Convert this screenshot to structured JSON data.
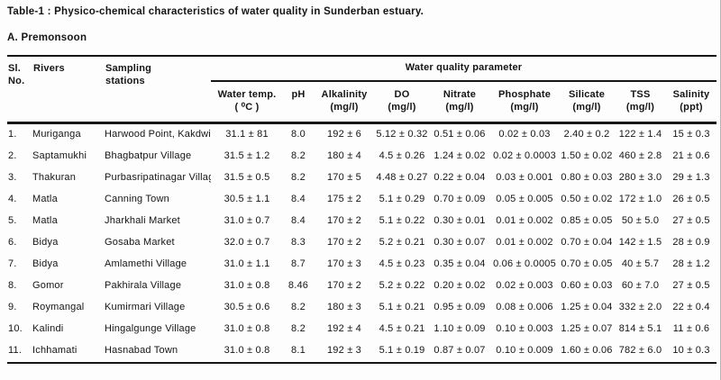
{
  "page": {
    "title": "Table-1 : Physico-chemical characteristics of water quality in Sunderban estuary.",
    "section_label": "A. Premonsoon"
  },
  "colors": {
    "background": "#fdfdfd",
    "text": "#151515",
    "rule": "#161616"
  },
  "table": {
    "group_header": "Water quality parameter",
    "row_headers": {
      "sl_no": "Sl.\nNo.",
      "rivers": "Rivers",
      "stations": "Sampling\nstations"
    },
    "columns": [
      {
        "name": "Water temp.",
        "unit": "( ⁰C )"
      },
      {
        "name": "pH",
        "unit": ""
      },
      {
        "name": "Alkalinity",
        "unit": "(mg/l)"
      },
      {
        "name": "DO",
        "unit": "(mg/l)"
      },
      {
        "name": "Nitrate",
        "unit": "(mg/l)"
      },
      {
        "name": "Phosphate",
        "unit": "(mg/l)"
      },
      {
        "name": "Silicate",
        "unit": "(mg/l)"
      },
      {
        "name": "TSS",
        "unit": "(mg/l)"
      },
      {
        "name": "Salinity",
        "unit": "(ppt)"
      }
    ],
    "rows": [
      [
        "1.",
        "Muriganga",
        "Harwood Point, Kakdwip",
        "31.1 ± 81",
        "8.0",
        "192 ± 6",
        "5.12 ± 0.32",
        "0.51 ± 0.06",
        "0.02 ± 0.03",
        "2.40 ± 0.2",
        "122 ± 1.4",
        "15 ± 0.3"
      ],
      [
        "2.",
        "Saptamukhi",
        "Bhagbatpur Village",
        "31.5 ± 1.2",
        "8.2",
        "180 ± 4",
        "4.5 ± 0.26",
        "1.24 ± 0.02",
        "0.02 ± 0.0003",
        "1.50 ± 0.02",
        "460 ± 2.8",
        "21 ± 0.6"
      ],
      [
        "3.",
        "Thakuran",
        "Purbasripatinagar Village",
        "31.5 ± 0.5",
        "8.2",
        "170 ± 5",
        "4.48 ± 0.27",
        "0.22 ± 0.04",
        "0.03 ± 0.001",
        "0.80 ± 0.03",
        "280 ± 3.0",
        "29 ± 1.3"
      ],
      [
        "4.",
        "Matla",
        "Canning Town",
        "30.5 ± 1.1",
        "8.4",
        "175 ± 2",
        "5.1 ± 0.29",
        "0.70 ± 0.09",
        "0.05 ± 0.005",
        "0.50 ± 0.02",
        "172 ± 1.0",
        "26 ± 0.5"
      ],
      [
        "5.",
        "Matla",
        "Jharkhali Market",
        "31.0 ± 0.7",
        "8.4",
        "170 ± 2",
        "5.1 ± 0.22",
        "0.30 ± 0.01",
        "0.01 ± 0.002",
        "0.85 ± 0.05",
        "50 ± 5.0",
        "27 ± 0.5"
      ],
      [
        "6.",
        "Bidya",
        "Gosaba Market",
        "32.0 ± 0.7",
        "8.3",
        "170 ± 2",
        "5.2 ± 0.21",
        "0.30 ± 0.07",
        "0.01 ± 0.002",
        "0.70 ± 0.04",
        "142 ± 1.5",
        "28 ± 0.9"
      ],
      [
        "7.",
        "Bidya",
        "Amlamethi Village",
        "31.0 ± 1.1",
        "8.7",
        "170 ± 3",
        "4.5 ± 0.23",
        "0.35 ± 0.04",
        "0.06 ± 0.0005",
        "0.70 ± 0.05",
        "40 ± 5.7",
        "28 ± 1.2"
      ],
      [
        "8.",
        "Gomor",
        "Pakhirala Village",
        "31.0 ± 0.8",
        "8.46",
        "170 ± 2",
        "5.2 ± 0.22",
        "0.20 ± 0.02",
        "0.02 ± 0.003",
        "0.60 ± 0.03",
        "60 ± 7.0",
        "27 ± 0.5"
      ],
      [
        "9.",
        "Roymangal",
        "Kumirmari Village",
        "30.5 ± 0.6",
        "8.2",
        "180 ± 3",
        "5.1 ± 0.21",
        "0.95 ± 0.09",
        "0.08 ± 0.006",
        "1.25 ± 0.04",
        "332 ± 2.0",
        "22 ± 0.4"
      ],
      [
        "10.",
        "Kalindi",
        "Hingalgunge Village",
        "31.0 ± 0.8",
        "8.2",
        "192 ± 4",
        "4.5 ± 0.21",
        "1.10 ± 0.09",
        "0.10 ± 0.003",
        "1.25 ± 0.07",
        "814 ± 5.1",
        "11 ± 0.6"
      ],
      [
        "11.",
        "Ichhamati",
        "Hasnabad Town",
        "31.0 ± 0.8",
        "8.1",
        "192 ± 3",
        "5.1 ± 0.19",
        "0.87 ± 0.07",
        "0.10 ± 0.009",
        "1.60 ± 0.06",
        "782 ± 6.0",
        "10 ± 0.3"
      ]
    ]
  }
}
